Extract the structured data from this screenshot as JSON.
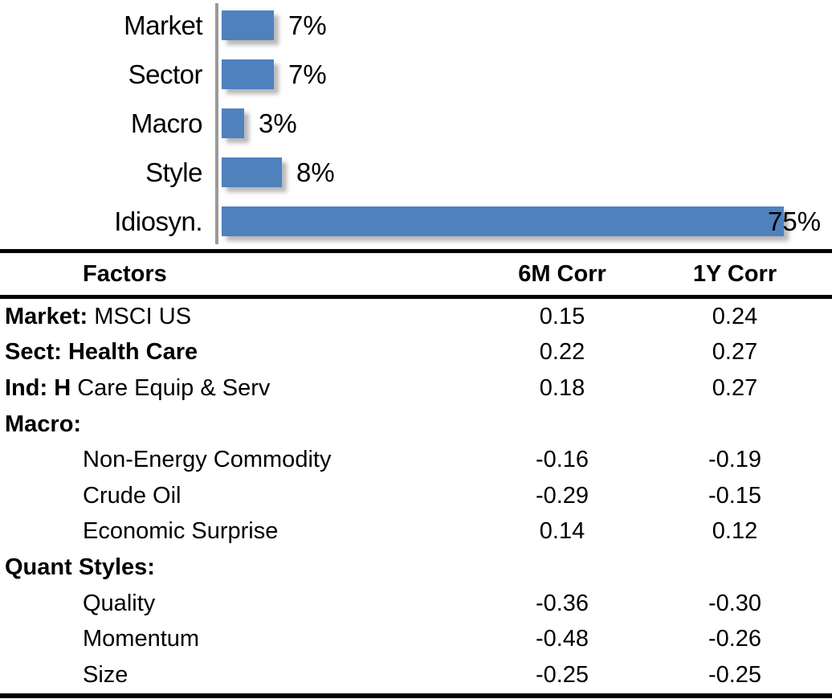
{
  "chart_data": {
    "type": "bar",
    "orientation": "horizontal",
    "title": "",
    "xlabel": "",
    "ylabel": "",
    "categories": [
      "Market",
      "Sector",
      "Macro",
      "Style",
      "Idiosyn."
    ],
    "values": [
      7,
      7,
      3,
      8,
      75
    ],
    "value_labels": [
      "7%",
      "7%",
      "3%",
      "8%",
      "75%"
    ],
    "unit": "%",
    "xlim": [
      0,
      80
    ],
    "grid": false,
    "legend": false,
    "bar_color": "#4F81BD",
    "axis_color": "#9a9a9a"
  },
  "table": {
    "columns": [
      "Factors",
      "6M Corr",
      "1Y Corr"
    ],
    "rule_color": "#000000",
    "rows": [
      {
        "bold": "Market:",
        "rest": " MSCI US",
        "indent": false,
        "c6m": "0.15",
        "c1y": "0.24"
      },
      {
        "bold": "Sect: Health Care",
        "rest": "",
        "indent": false,
        "c6m": "0.22",
        "c1y": "0.27"
      },
      {
        "bold": "Ind: H",
        "rest": " Care Equip & Serv",
        "indent": false,
        "c6m": "0.18",
        "c1y": "0.27"
      },
      {
        "bold": "Macro:",
        "rest": "",
        "indent": false,
        "c6m": "",
        "c1y": ""
      },
      {
        "bold": "",
        "rest": "Non-Energy Commodity",
        "indent": true,
        "c6m": "-0.16",
        "c1y": "-0.19"
      },
      {
        "bold": "",
        "rest": "Crude Oil",
        "indent": true,
        "c6m": "-0.29",
        "c1y": "-0.15"
      },
      {
        "bold": "",
        "rest": "Economic Surprise",
        "indent": true,
        "c6m": "0.14",
        "c1y": "0.12"
      },
      {
        "bold": "Quant Styles:",
        "rest": "",
        "indent": false,
        "c6m": "",
        "c1y": ""
      },
      {
        "bold": "",
        "rest": "Quality",
        "indent": true,
        "c6m": "-0.36",
        "c1y": "-0.30"
      },
      {
        "bold": "",
        "rest": "Momentum",
        "indent": true,
        "c6m": "-0.48",
        "c1y": "-0.26"
      },
      {
        "bold": "",
        "rest": "Size",
        "indent": true,
        "c6m": "-0.25",
        "c1y": "-0.25"
      }
    ]
  }
}
